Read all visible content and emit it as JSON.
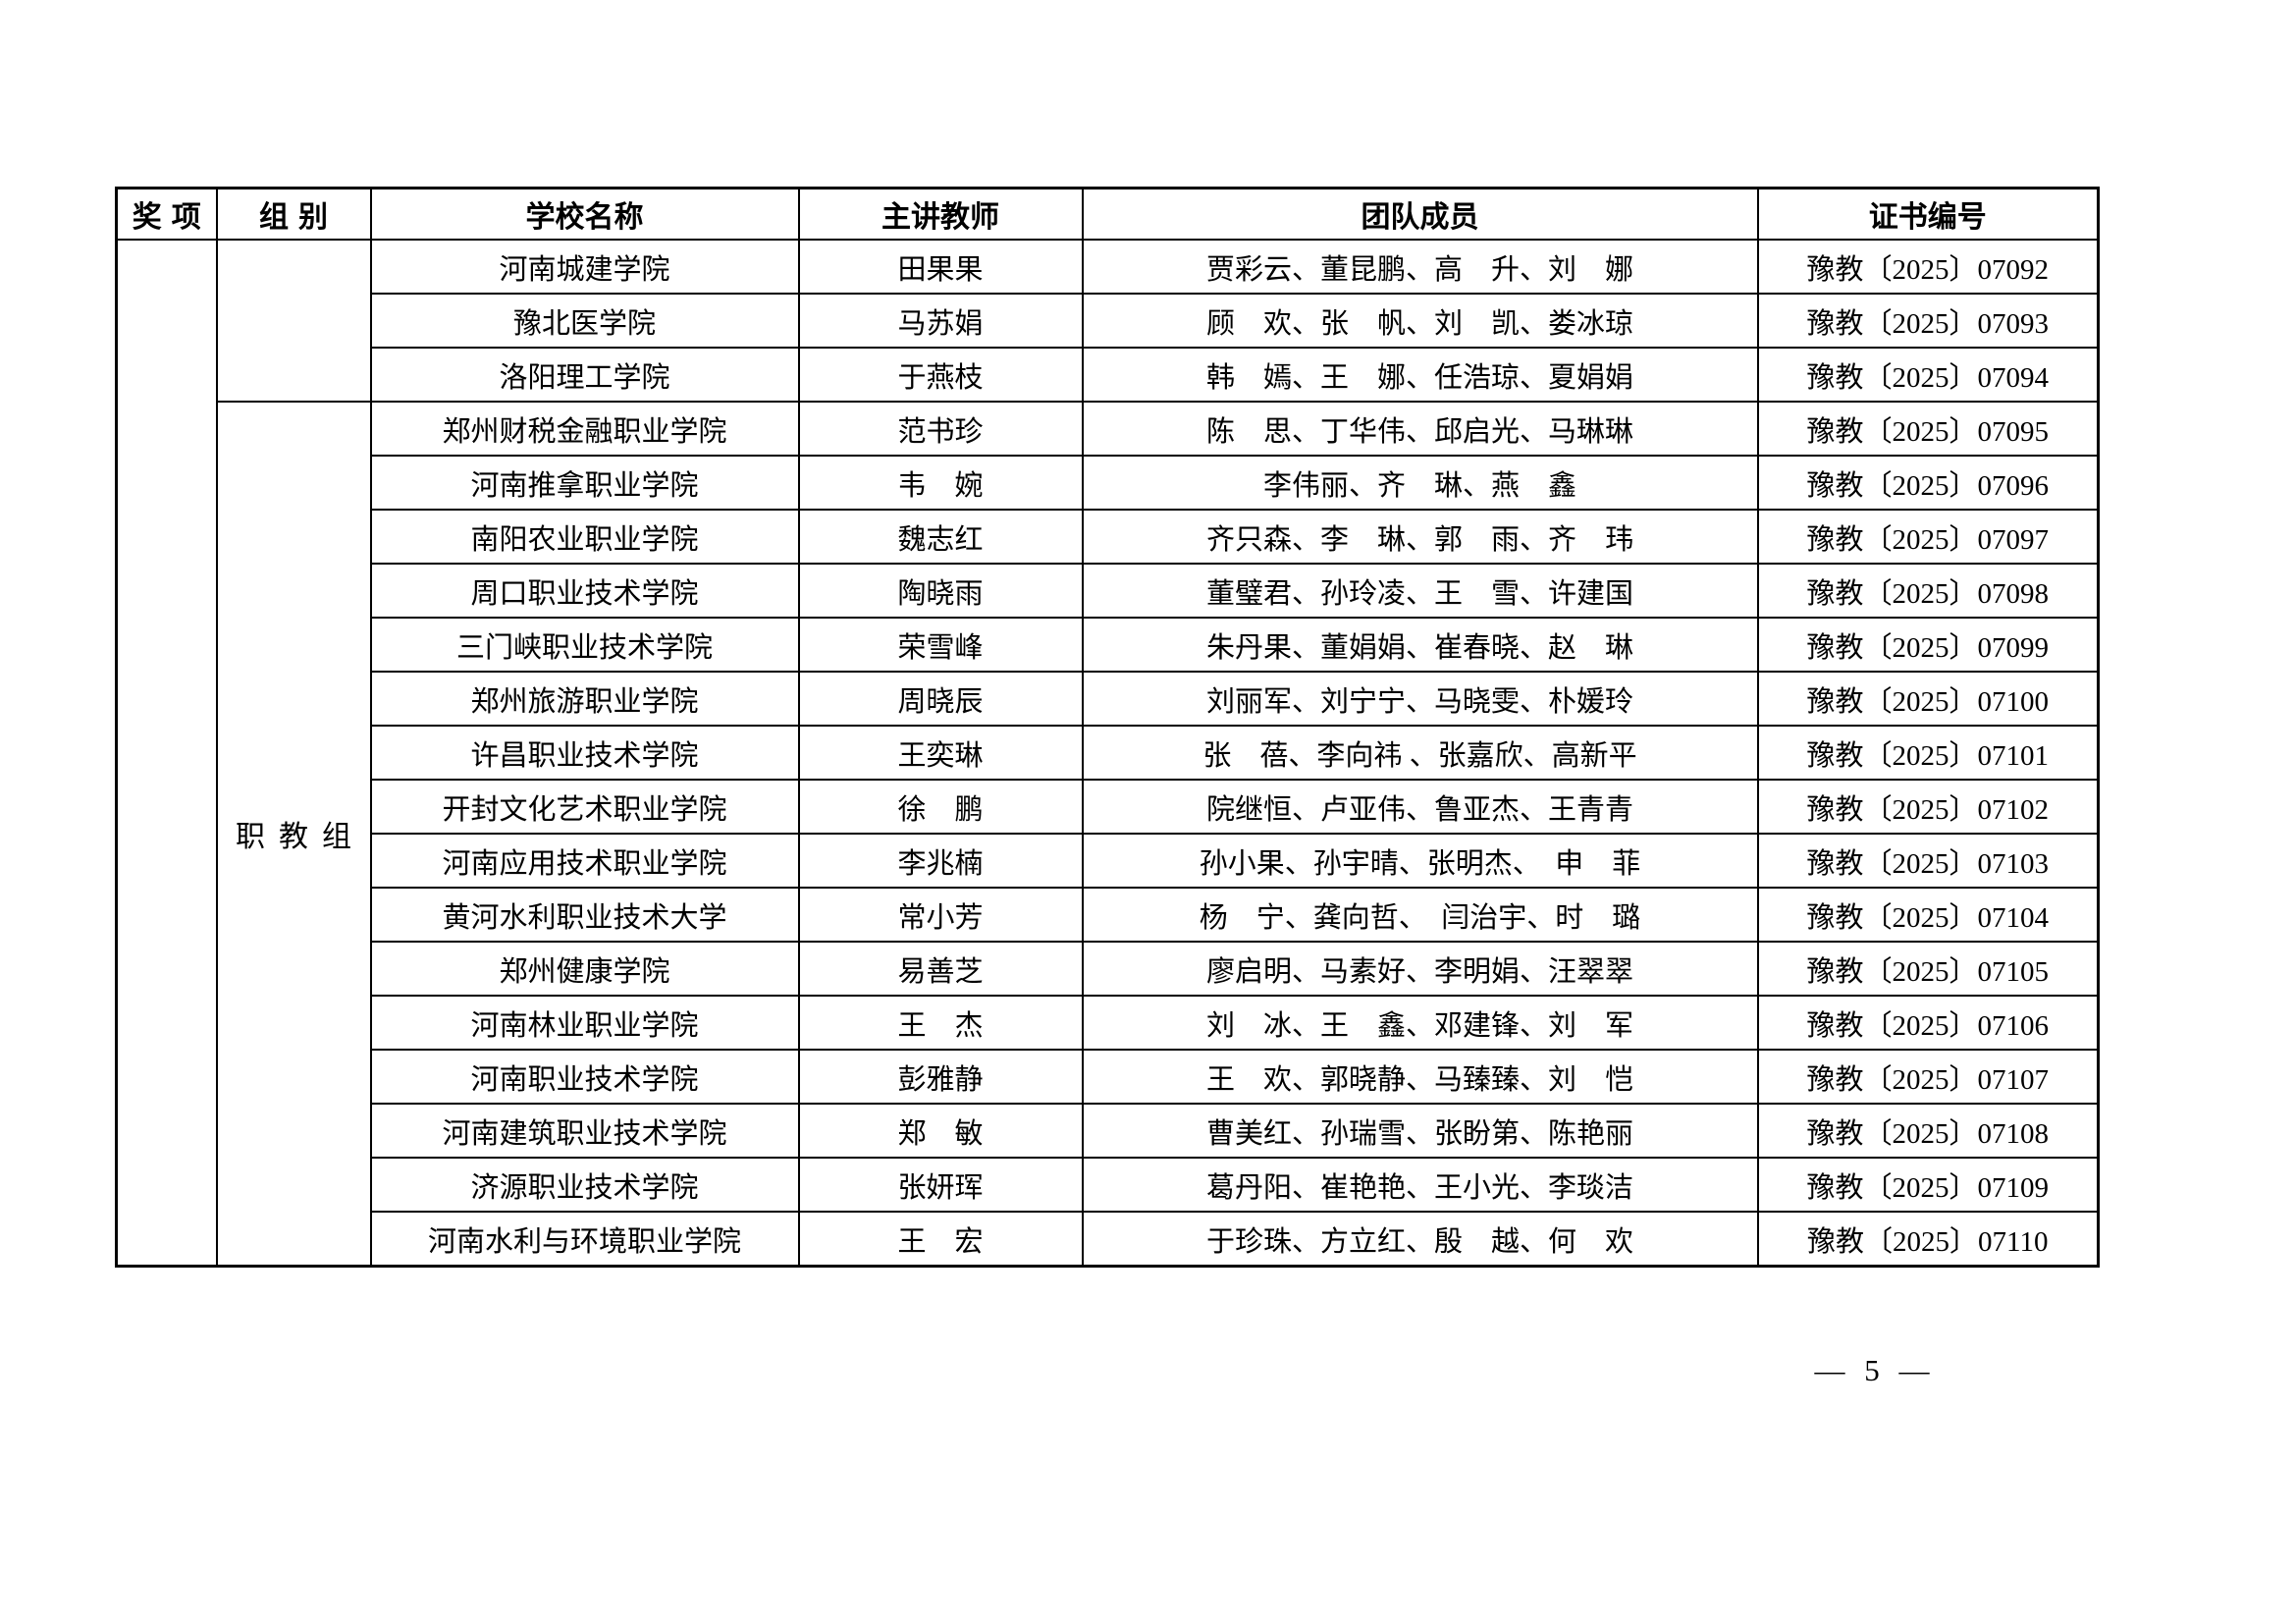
{
  "page": {
    "number_display": "—  5  —"
  },
  "table": {
    "headers": [
      "奖项",
      "组别",
      "学校名称",
      "主讲教师",
      "团队成员",
      "证书编号"
    ],
    "award_label": "",
    "groups": [
      {
        "label": "",
        "rowspan": 3
      },
      {
        "label": "职教组",
        "rowspan": 16
      }
    ],
    "rows": [
      {
        "school": "河南城建学院",
        "teacher": "田果果",
        "team": "贾彩云、董昆鹏、高　升、刘　娜",
        "cert": "豫教〔2025〕07092"
      },
      {
        "school": "豫北医学院",
        "teacher": "马苏娟",
        "team": "顾　欢、张　帆、刘　凯、娄冰琼",
        "cert": "豫教〔2025〕07093"
      },
      {
        "school": "洛阳理工学院",
        "teacher": "于燕枝",
        "team": "韩　嫣、王　娜、任浩琼、夏娟娟",
        "cert": "豫教〔2025〕07094"
      },
      {
        "school": "郑州财税金融职业学院",
        "teacher": "范书珍",
        "team": "陈　思、丁华伟、邱启光、马琳琳",
        "cert": "豫教〔2025〕07095"
      },
      {
        "school": "河南推拿职业学院",
        "teacher": "韦　婉",
        "team": "李伟丽、齐　琳、燕　鑫",
        "cert": "豫教〔2025〕07096"
      },
      {
        "school": "南阳农业职业学院",
        "teacher": "魏志红",
        "team": "齐只森、李　琳、郭　雨、齐　玮",
        "cert": "豫教〔2025〕07097"
      },
      {
        "school": "周口职业技术学院",
        "teacher": "陶晓雨",
        "team": "董璧君、孙玲凌、王　雪、许建国",
        "cert": "豫教〔2025〕07098"
      },
      {
        "school": "三门峡职业技术学院",
        "teacher": "荣雪峰",
        "team": "朱丹果、董娟娟、崔春晓、赵　琳",
        "cert": "豫教〔2025〕07099"
      },
      {
        "school": "郑州旅游职业学院",
        "teacher": "周晓辰",
        "team": "刘丽军、刘宁宁、马晓雯、朴媛玲",
        "cert": "豫教〔2025〕07100"
      },
      {
        "school": "许昌职业技术学院",
        "teacher": "王奕琳",
        "team": "张　蓓、李向祎 、张嘉欣、高新平",
        "cert": "豫教〔2025〕07101"
      },
      {
        "school": "开封文化艺术职业学院",
        "teacher": "徐　鹏",
        "team": "院继恒、卢亚伟、鲁亚杰、王青青",
        "cert": "豫教〔2025〕07102"
      },
      {
        "school": "河南应用技术职业学院",
        "teacher": "李兆楠",
        "team": "孙小果、孙宇晴、张明杰、　申　菲",
        "cert": "豫教〔2025〕07103"
      },
      {
        "school": "黄河水利职业技术大学",
        "teacher": "常小芳",
        "team": "杨　宁、龚向哲、　闫治宇、时　璐",
        "cert": "豫教〔2025〕07104"
      },
      {
        "school": "郑州健康学院",
        "teacher": "易善芝",
        "team": "廖启明、马素好、李明娟、汪翠翠",
        "cert": "豫教〔2025〕07105"
      },
      {
        "school": "河南林业职业学院",
        "teacher": "王　杰",
        "team": "刘　冰、王　鑫、邓建锋、刘　军",
        "cert": "豫教〔2025〕07106"
      },
      {
        "school": "河南职业技术学院",
        "teacher": "彭雅静",
        "team": "王　欢、郭晓静、马臻臻、刘　恺",
        "cert": "豫教〔2025〕07107"
      },
      {
        "school": "河南建筑职业技术学院",
        "teacher": "郑　敏",
        "team": "曹美红、孙瑞雪、张盼第、陈艳丽",
        "cert": "豫教〔2025〕07108"
      },
      {
        "school": "济源职业技术学院",
        "teacher": "张妍珲",
        "team": "葛丹阳、崔艳艳、王小光、李琰洁",
        "cert": "豫教〔2025〕07109"
      },
      {
        "school": "河南水利与环境职业学院",
        "teacher": "王　宏",
        "team": "于珍珠、方立红、殷　越、何　欢",
        "cert": "豫教〔2025〕07110"
      }
    ]
  }
}
